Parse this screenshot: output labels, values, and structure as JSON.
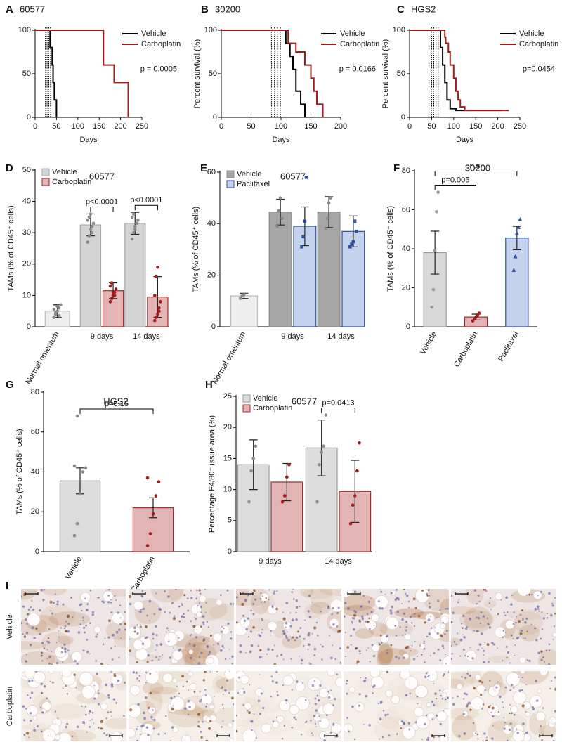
{
  "chart_data": [
    {
      "type": "survival",
      "panel": "A",
      "title": "60577",
      "xlabel": "Days",
      "xlim": [
        0,
        250
      ],
      "xticks": [
        0,
        50,
        100,
        150,
        200,
        250
      ],
      "ylim": [
        0,
        100
      ],
      "yticks": [
        0,
        50,
        100
      ],
      "dosing_days": [
        24,
        28,
        32,
        36
      ],
      "annotation": "p = 0.0005",
      "legend_loc": "upper right",
      "series": [
        {
          "name": "Vehicle",
          "color": "#000000",
          "x": [
            0,
            35,
            40,
            42,
            45,
            50
          ],
          "values": [
            100,
            80,
            60,
            40,
            20,
            0
          ]
        },
        {
          "name": "Carboplatin",
          "color": "#a01c1c",
          "x": [
            0,
            160,
            185,
            218
          ],
          "values": [
            100,
            60,
            40,
            0
          ]
        }
      ]
    },
    {
      "type": "survival",
      "panel": "B",
      "title": "30200",
      "xlabel": "Days",
      "ylabel": "Percent survival (%)",
      "xlim": [
        0,
        200
      ],
      "xticks": [
        0,
        50,
        100,
        150,
        200
      ],
      "ylim": [
        0,
        100
      ],
      "yticks": [
        0,
        50,
        100
      ],
      "dosing_days": [
        84,
        89,
        94,
        99
      ],
      "annotation": "p = 0.0166",
      "legend_loc": "upper right",
      "series": [
        {
          "name": "Vehicle",
          "color": "#000000",
          "x": [
            0,
            108,
            115,
            120,
            125,
            133,
            140
          ],
          "values": [
            100,
            85,
            70,
            55,
            30,
            15,
            0
          ]
        },
        {
          "name": "Carboplatin",
          "color": "#a01c1c",
          "x": [
            0,
            112,
            125,
            140,
            150,
            155,
            160,
            170
          ],
          "values": [
            100,
            85,
            75,
            60,
            45,
            30,
            15,
            0
          ]
        }
      ]
    },
    {
      "type": "survival",
      "panel": "C",
      "title": "HGS2",
      "xlabel": "Days",
      "ylabel": "Percent survival (%)",
      "xlim": [
        0,
        250
      ],
      "xticks": [
        0,
        50,
        100,
        150,
        200,
        250
      ],
      "ylim": [
        0,
        100
      ],
      "yticks": [
        0,
        50,
        100
      ],
      "dosing_days": [
        50,
        55,
        60,
        65
      ],
      "annotation": "p=0.0454",
      "legend_loc": "upper right",
      "series": [
        {
          "name": "Vehicle",
          "color": "#000000",
          "x": [
            0,
            70,
            75,
            80,
            85,
            92,
            105,
            210
          ],
          "values": [
            100,
            80,
            60,
            40,
            20,
            10,
            8,
            8
          ]
        },
        {
          "name": "Carboplatin",
          "color": "#a01c1c",
          "x": [
            0,
            80,
            82,
            88,
            92,
            100,
            105,
            110,
            115,
            125,
            130,
            225
          ],
          "values": [
            100,
            92,
            85,
            75,
            60,
            45,
            30,
            20,
            12,
            8,
            8,
            8
          ]
        }
      ]
    },
    {
      "type": "bar",
      "panel": "D",
      "title": "60577",
      "ylabel": "TAMs (% of CD45⁺ cells)",
      "ylim": [
        0,
        50
      ],
      "yticks": [
        0,
        10,
        20,
        30,
        40,
        50
      ],
      "legend_loc": "upper left",
      "legend": [
        {
          "name": "Vehicle",
          "color": "#d4d4d4",
          "edge": "#a8a8a8"
        },
        {
          "name": "Carboplatin",
          "color": "#e2b4b4",
          "edge": "#a42a2a"
        }
      ],
      "groups": [
        {
          "label": "Normal omentum",
          "label_rotation": 60,
          "bars": [
            {
              "value": 5,
              "error": 2,
              "color": "#eeeeee",
              "edge": "#bbbbbb",
              "marker": "circle",
              "point_color": "#8a8a8a",
              "points": [
                3,
                4,
                5,
                6,
                7,
                5.5,
                4.5,
                6.5,
                3.5
              ]
            }
          ]
        },
        {
          "label": "9 days",
          "label_rotation": 0,
          "bars": [
            {
              "value": 32.5,
              "error": 3.5,
              "color": "#d4d4d4",
              "edge": "#a8a8a8",
              "marker": "circle",
              "point_color": "#8a8a8a",
              "points": [
                27,
                29,
                31,
                32,
                33,
                34,
                35,
                36,
                30
              ]
            },
            {
              "value": 11.5,
              "error": 2.5,
              "color": "#e2b4b4",
              "edge": "#a42a2a",
              "marker": "circle",
              "point_color": "#a01c1c",
              "points": [
                8,
                9,
                10,
                11,
                12,
                13,
                14,
                11,
                10
              ]
            }
          ]
        },
        {
          "label": "14 days",
          "label_rotation": 0,
          "bars": [
            {
              "value": 33,
              "error": 3.5,
              "color": "#d4d4d4",
              "edge": "#a8a8a8",
              "marker": "circle",
              "point_color": "#8a8a8a",
              "points": [
                28,
                30,
                32,
                33,
                34,
                35,
                36,
                31
              ]
            },
            {
              "value": 9.5,
              "error": 6.5,
              "color": "#e2b4b4",
              "edge": "#a42a2a",
              "marker": "circle",
              "point_color": "#a01c1c",
              "points": [
                2,
                3,
                4,
                5,
                8,
                10,
                16,
                19,
                6
              ]
            }
          ]
        }
      ],
      "comparisons": [
        {
          "label": "p<0.0001",
          "bars": [
            [
              1,
              0
            ],
            [
              1,
              1
            ]
          ]
        },
        {
          "label": "p<0.0001",
          "bars": [
            [
              2,
              0
            ],
            [
              2,
              1
            ]
          ]
        }
      ]
    },
    {
      "type": "bar",
      "panel": "E",
      "title": "60577",
      "ylabel": "TAMs (% of CD45⁺ cells)",
      "ylim": [
        0,
        60
      ],
      "yticks": [
        0,
        20,
        40,
        60
      ],
      "legend_loc": "upper left",
      "legend": [
        {
          "name": "Vehicle",
          "color": "#a6a6a6",
          "edge": "#8a8a8a"
        },
        {
          "name": "Paclitaxel",
          "color": "#c5d2ee",
          "edge": "#2c4f9e"
        }
      ],
      "groups": [
        {
          "label": "Normal omentum",
          "label_rotation": 60,
          "bars": [
            {
              "value": 12,
              "error": 1,
              "color": "#eeeeee",
              "edge": "#bbbbbb",
              "marker": "circle",
              "point_color": "#8a8a8a",
              "points": [
                11,
                12,
                12.5
              ]
            }
          ]
        },
        {
          "label": "9 days",
          "label_rotation": 0,
          "bars": [
            {
              "value": 44.5,
              "error": 5,
              "color": "#a6a6a6",
              "edge": "#8a8a8a",
              "marker": "circle",
              "point_color": "#8a8a8a",
              "points": [
                39,
                45,
                50,
                42
              ]
            },
            {
              "value": 39,
              "error": 7.5,
              "color": "#c5d2ee",
              "edge": "#2c4f9e",
              "marker": "square",
              "point_color": "#2c4f9e",
              "points": [
                31,
                35,
                41,
                58
              ]
            }
          ]
        },
        {
          "label": "14 days",
          "label_rotation": 0,
          "bars": [
            {
              "value": 44.5,
              "error": 6,
              "color": "#a6a6a6",
              "edge": "#8a8a8a",
              "marker": "circle",
              "point_color": "#8a8a8a",
              "points": [
                38,
                42,
                48,
                50
              ]
            },
            {
              "value": 37,
              "error": 6,
              "color": "#c5d2ee",
              "edge": "#2c4f9e",
              "marker": "square",
              "point_color": "#2c4f9e",
              "points": [
                31,
                32,
                33,
                41,
                37
              ]
            }
          ]
        }
      ],
      "comparisons": []
    },
    {
      "type": "bar",
      "panel": "F",
      "title": "30200",
      "ylabel": "TAMs (% of CD45⁺ cells)",
      "ylim": [
        0,
        80
      ],
      "yticks": [
        0,
        20,
        40,
        60,
        80
      ],
      "legend": [],
      "groups": [
        {
          "label": "Vehicle",
          "label_rotation": 60,
          "bars": [
            {
              "value": 38,
              "error": 11,
              "color": "#d9d9d9",
              "edge": "#999999",
              "marker": "circle",
              "point_color": "#999999",
              "points": [
                10,
                19,
                39,
                59,
                69
              ]
            }
          ]
        },
        {
          "label": "Carboplatin",
          "label_rotation": 60,
          "bars": [
            {
              "value": 5,
              "error": 1.5,
              "color": "#e2b4b4",
              "edge": "#a42a2a",
              "marker": "circle",
              "point_color": "#a01c1c",
              "points": [
                3,
                4,
                5,
                6,
                7
              ]
            }
          ]
        },
        {
          "label": "Paclitaxel",
          "label_rotation": 60,
          "bars": [
            {
              "value": 45.5,
              "error": 6,
              "color": "#c5d2ee",
              "edge": "#2c4f9e",
              "marker": "triangle",
              "point_color": "#2c4f9e",
              "points": [
                29,
                36,
                48,
                51,
                55
              ]
            }
          ]
        }
      ],
      "comparisons": [
        {
          "label": "p=0.005",
          "bars": [
            [
              0,
              0
            ],
            [
              1,
              0
            ]
          ]
        },
        {
          "label": "n.s.",
          "bars": [
            [
              0,
              0
            ],
            [
              2,
              0
            ]
          ]
        }
      ]
    },
    {
      "type": "bar",
      "panel": "G",
      "title": "HGS2",
      "ylabel": "TAMs (% of CD45⁺ cells)",
      "ylim": [
        0,
        80
      ],
      "yticks": [
        0,
        20,
        40,
        60,
        80
      ],
      "legend": [],
      "groups": [
        {
          "label": "Vehicle",
          "label_rotation": 60,
          "bars": [
            {
              "value": 35.5,
              "error": 6.5,
              "color": "#dcdcdc",
              "edge": "#999999",
              "marker": "circle",
              "point_color": "#8a8a8a",
              "points": [
                8,
                14,
                29,
                40,
                42,
                43,
                68
              ]
            }
          ]
        },
        {
          "label": "Carboplatin",
          "label_rotation": 60,
          "bars": [
            {
              "value": 22,
              "error": 5,
              "color": "#e2b4b4",
              "edge": "#a42a2a",
              "marker": "circle",
              "point_color": "#a01c1c",
              "points": [
                3,
                9,
                19,
                28,
                35,
                37
              ]
            }
          ]
        }
      ],
      "comparisons": [
        {
          "label": "p=0.15",
          "bars": [
            [
              0,
              0
            ],
            [
              1,
              0
            ]
          ]
        }
      ]
    },
    {
      "type": "bar",
      "panel": "H",
      "title": "60577",
      "ylabel": "Percentage F4/80⁺ issue area (%)",
      "ylim": [
        0,
        25
      ],
      "yticks": [
        0,
        5,
        10,
        15,
        20,
        25
      ],
      "legend_loc": "upper left",
      "legend": [
        {
          "name": "Vehicle",
          "color": "#dcdcdc",
          "edge": "#999999"
        },
        {
          "name": "Carboplatin",
          "color": "#e2b4b4",
          "edge": "#a42a2a"
        }
      ],
      "groups": [
        {
          "label": "9 days",
          "label_rotation": 0,
          "bars": [
            {
              "value": 14,
              "error": 4,
              "color": "#dcdcdc",
              "edge": "#999999",
              "marker": "circle",
              "point_color": "#8a8a8a",
              "points": [
                8,
                13,
                15,
                17
              ]
            },
            {
              "value": 11.2,
              "error": 3,
              "color": "#e2b4b4",
              "edge": "#a42a2a",
              "marker": "circle",
              "point_color": "#a01c1c",
              "points": [
                8,
                9,
                12,
                14
              ]
            }
          ]
        },
        {
          "label": "14 days",
          "label_rotation": 0,
          "bars": [
            {
              "value": 16.7,
              "error": 4.5,
              "color": "#dcdcdc",
              "edge": "#999999",
              "marker": "circle",
              "point_color": "#8a8a8a",
              "points": [
                8,
                14,
                16,
                17,
                22
              ]
            },
            {
              "value": 9.7,
              "error": 5,
              "color": "#e2b4b4",
              "edge": "#a42a2a",
              "marker": "circle",
              "point_color": "#a01c1c",
              "points": [
                4.5,
                7.5,
                9,
                13,
                17.5
              ]
            }
          ]
        }
      ],
      "comparisons": [
        {
          "label": "p=0.0413",
          "bars": [
            [
              1,
              0
            ],
            [
              1,
              1
            ]
          ]
        }
      ]
    }
  ],
  "panel_i": {
    "panel": "I",
    "rows": [
      "Vehicle",
      "Carboplatin"
    ]
  }
}
